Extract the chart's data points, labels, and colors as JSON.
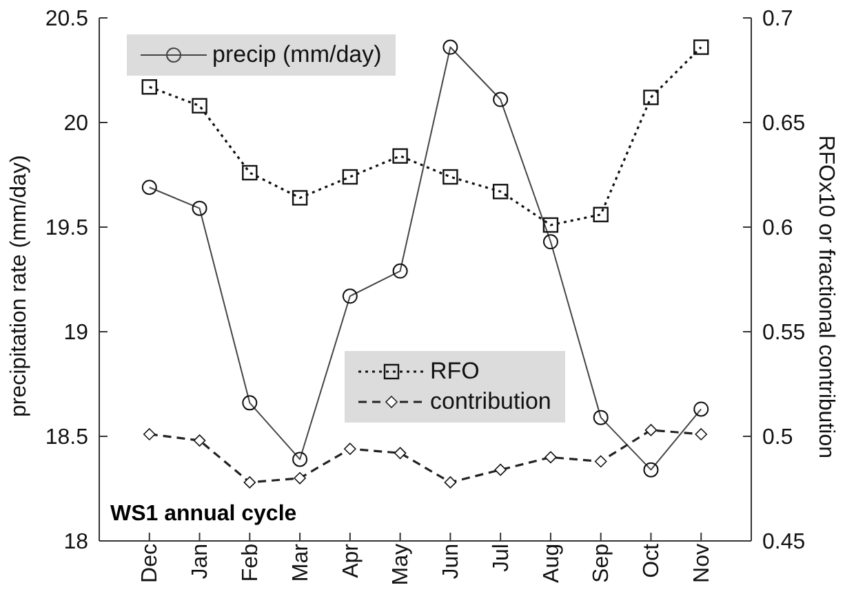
{
  "chart_data": {
    "type": "line",
    "title": "WS1 annual cycle",
    "ylabel": "precipitation rate (mm/day)",
    "y2label": "RFOx10 or fractional contribution",
    "categories": [
      "Dec",
      "Jan",
      "Feb",
      "Mar",
      "Apr",
      "May",
      "Jun",
      "Jul",
      "Aug",
      "Sep",
      "Oct",
      "Nov"
    ],
    "series": [
      {
        "name": "precip (mm/day)",
        "color": "#444444",
        "marker": "circle",
        "line_style": "solid",
        "values": [
          19.69,
          19.59,
          18.66,
          18.39,
          19.17,
          19.29,
          20.36,
          20.11,
          19.43,
          18.59,
          18.34,
          18.63
        ]
      },
      {
        "name": "RFO",
        "color": "#111111",
        "marker": "square",
        "line_style": "dotted",
        "axis": "y2",
        "values": [
          0.667,
          0.658,
          0.626,
          0.614,
          0.624,
          0.634,
          0.624,
          0.617,
          0.601,
          0.606,
          0.662,
          0.686
        ]
      },
      {
        "name": "contribution",
        "color": "#222222",
        "marker": "diamond",
        "line_style": "dashed",
        "axis": "y2",
        "values": [
          0.501,
          0.498,
          0.478,
          0.48,
          0.494,
          0.492,
          0.478,
          0.484,
          0.49,
          0.488,
          0.503,
          0.501
        ]
      }
    ],
    "ylim": [
      18,
      20.5
    ],
    "yticks": [
      18,
      18.5,
      19,
      19.5,
      20,
      20.5
    ],
    "y2lim": [
      0.45,
      0.7
    ],
    "y2ticks": [
      0.45,
      0.5,
      0.55,
      0.6,
      0.65,
      0.7
    ],
    "legend": "top left",
    "grid": false
  }
}
